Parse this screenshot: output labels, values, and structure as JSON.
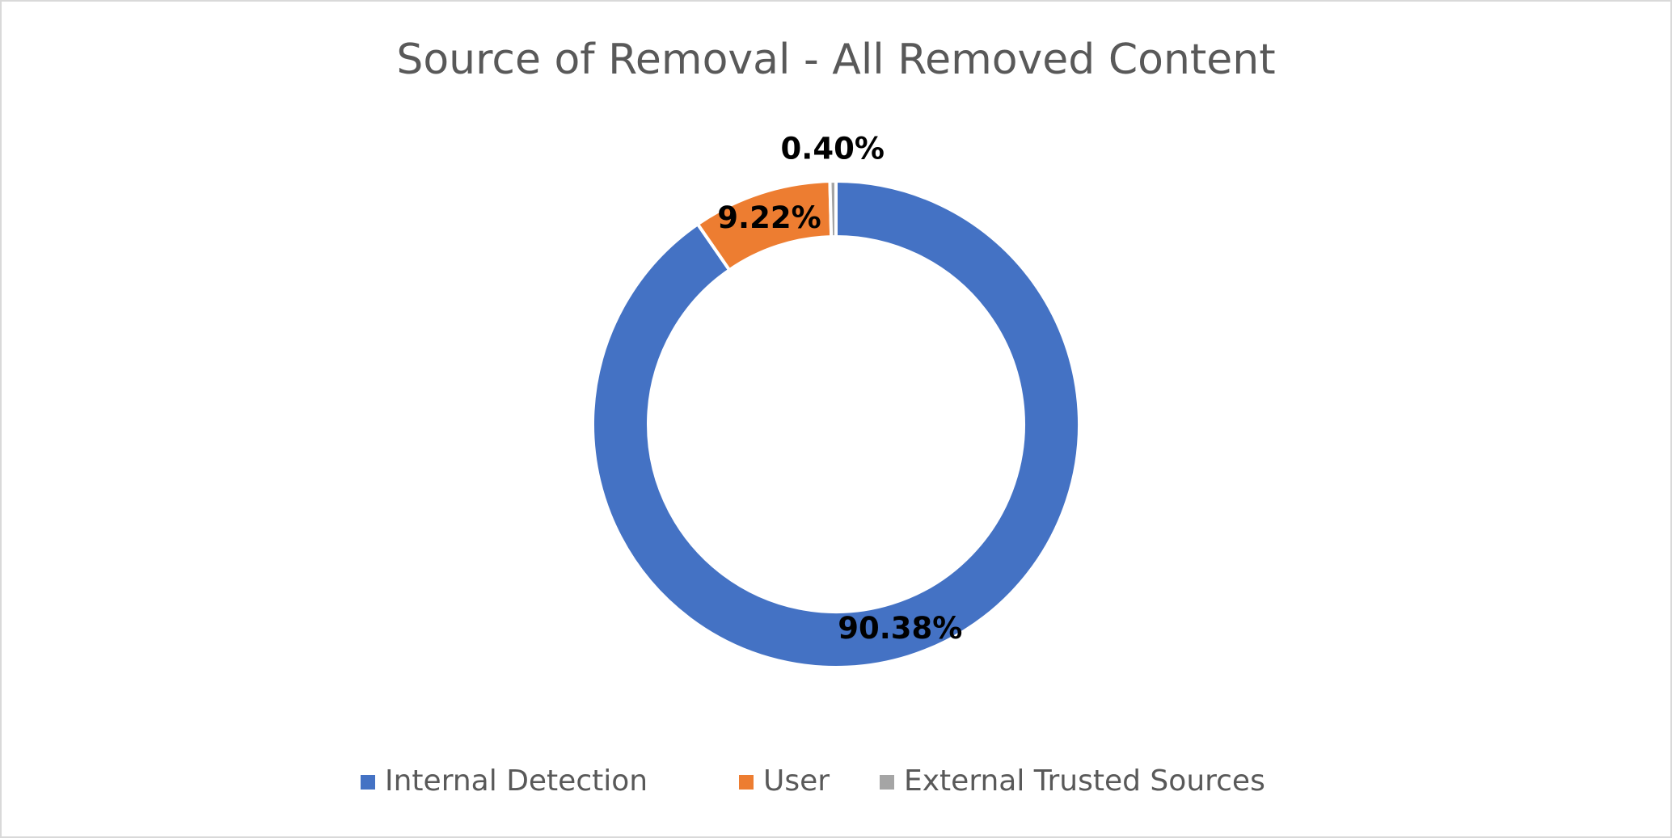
{
  "chart_data": {
    "type": "donut",
    "title": "Source of Removal - All Removed Content",
    "categories": [
      "Internal Detection",
      "User",
      "External Trusted Sources"
    ],
    "values": [
      90.38,
      9.22,
      0.4
    ],
    "value_labels": [
      "90.38%",
      "9.22%",
      "0.40%"
    ],
    "colors": [
      "#4472c4",
      "#ed7d31",
      "#a5a5a5"
    ],
    "legend": "bottom"
  }
}
